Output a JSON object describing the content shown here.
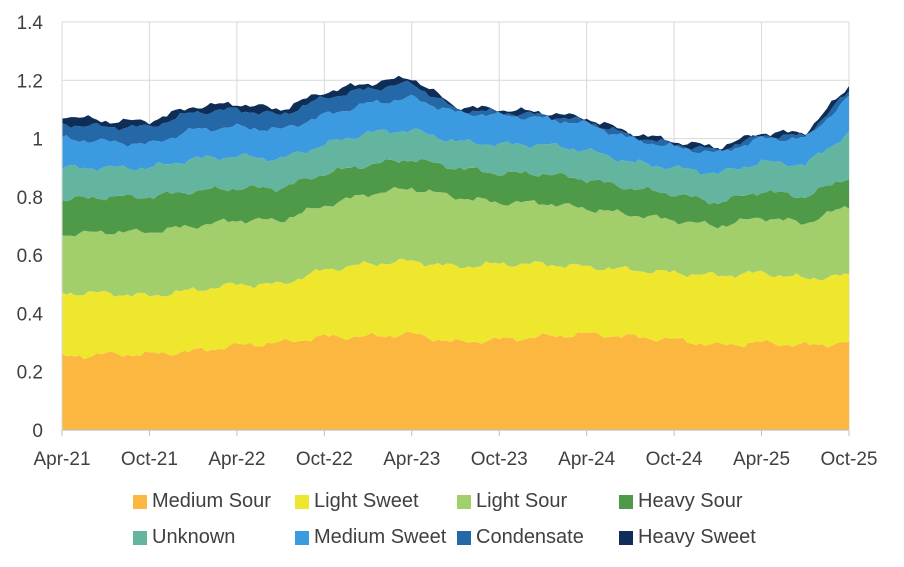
{
  "chart_data": {
    "type": "area",
    "stacked": true,
    "title": "",
    "xlabel": "",
    "ylabel": "",
    "ylim": [
      0,
      1.4
    ],
    "yticks": [
      "0",
      "0.2",
      "0.4",
      "0.6",
      "0.8",
      "1",
      "1.2",
      "1.4"
    ],
    "grid": true,
    "x_tick_labels": [
      "Apr-21",
      "Oct-21",
      "Apr-22",
      "Oct-22",
      "Apr-23",
      "Oct-23",
      "Apr-24",
      "Oct-24",
      "Apr-25",
      "Oct-25"
    ],
    "legend_position": "bottom",
    "x": [
      "Apr-21",
      "Jul-21",
      "Oct-21",
      "Jan-22",
      "Apr-22",
      "Jul-22",
      "Oct-22",
      "Jan-23",
      "Apr-23",
      "Jul-23",
      "Oct-23",
      "Jan-24",
      "Apr-24",
      "Jul-24",
      "Oct-24",
      "Jan-25",
      "Apr-25",
      "Jul-25",
      "Oct-25"
    ],
    "series": [
      {
        "name": "Medium Sour",
        "color": "#FBB73F",
        "values": [
          0.25,
          0.26,
          0.26,
          0.27,
          0.29,
          0.3,
          0.32,
          0.32,
          0.33,
          0.3,
          0.31,
          0.32,
          0.33,
          0.32,
          0.31,
          0.29,
          0.3,
          0.29,
          0.3
        ]
      },
      {
        "name": "Light Sweet",
        "color": "#EFE72E",
        "values": [
          0.22,
          0.21,
          0.2,
          0.21,
          0.21,
          0.2,
          0.23,
          0.25,
          0.25,
          0.26,
          0.26,
          0.25,
          0.23,
          0.23,
          0.23,
          0.24,
          0.24,
          0.23,
          0.23
        ]
      },
      {
        "name": "Light Sour",
        "color": "#A2CE6C",
        "values": [
          0.2,
          0.21,
          0.22,
          0.22,
          0.22,
          0.22,
          0.22,
          0.24,
          0.25,
          0.24,
          0.21,
          0.21,
          0.2,
          0.19,
          0.18,
          0.17,
          0.19,
          0.19,
          0.24
        ]
      },
      {
        "name": "Heavy Sour",
        "color": "#4E9A48",
        "values": [
          0.12,
          0.12,
          0.12,
          0.12,
          0.11,
          0.11,
          0.11,
          0.1,
          0.1,
          0.1,
          0.1,
          0.1,
          0.1,
          0.09,
          0.09,
          0.08,
          0.09,
          0.09,
          0.1
        ]
      },
      {
        "name": "Unknown",
        "color": "#64B5A0",
        "values": [
          0.11,
          0.1,
          0.1,
          0.11,
          0.11,
          0.1,
          0.1,
          0.11,
          0.1,
          0.09,
          0.1,
          0.1,
          0.1,
          0.09,
          0.09,
          0.1,
          0.1,
          0.11,
          0.15
        ]
      },
      {
        "name": "Medium Sweet",
        "color": "#3C9BE0",
        "values": [
          0.1,
          0.09,
          0.08,
          0.1,
          0.1,
          0.1,
          0.1,
          0.1,
          0.11,
          0.1,
          0.1,
          0.09,
          0.09,
          0.08,
          0.07,
          0.07,
          0.08,
          0.09,
          0.12
        ]
      },
      {
        "name": "Condensate",
        "color": "#2568A8",
        "values": [
          0.05,
          0.05,
          0.06,
          0.06,
          0.06,
          0.05,
          0.06,
          0.05,
          0.05,
          0.01,
          0.01,
          0.01,
          0.01,
          0.01,
          0.01,
          0.01,
          0.01,
          0.01,
          0.02
        ]
      },
      {
        "name": "Heavy Sweet",
        "color": "#0F2E57",
        "values": [
          0.03,
          0.02,
          0.02,
          0.02,
          0.02,
          0.02,
          0.02,
          0.02,
          0.02,
          0.01,
          0.01,
          0.01,
          0.01,
          0.01,
          0.01,
          0.01,
          0.01,
          0.01,
          0.02
        ]
      }
    ]
  }
}
